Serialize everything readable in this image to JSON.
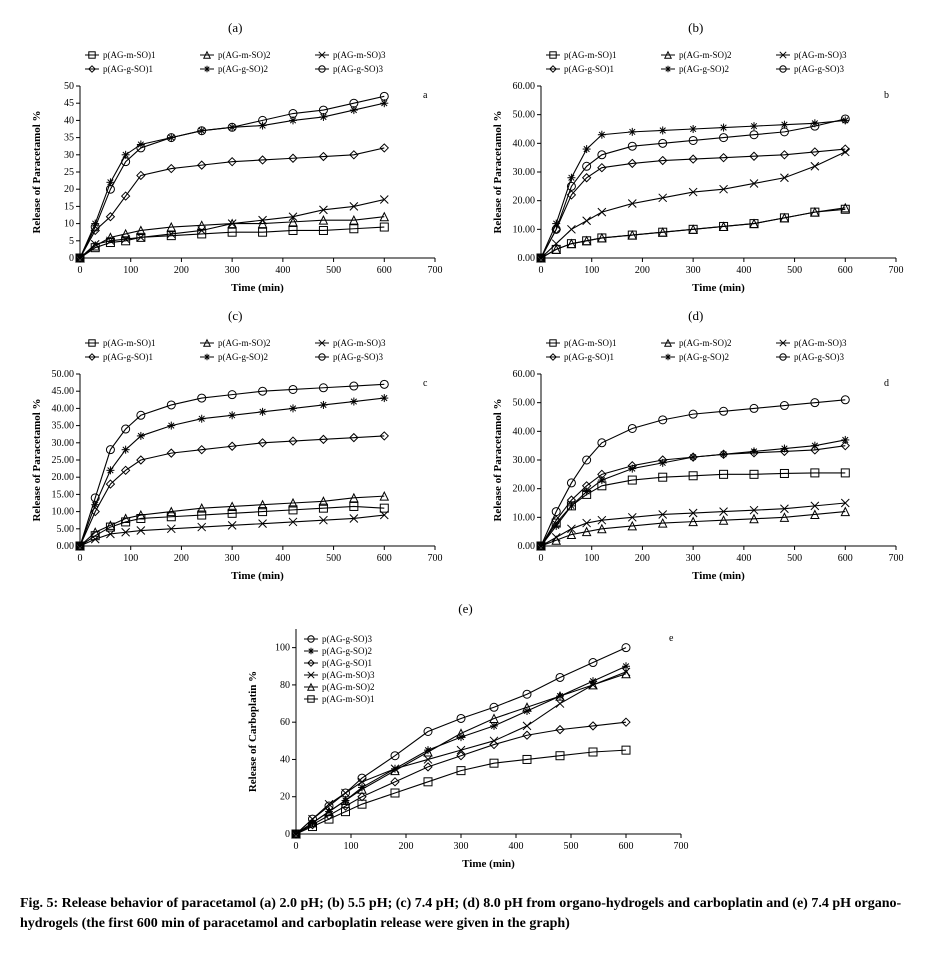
{
  "caption": "Fig. 5: Release behavior of paracetamol (a) 2.0 pH; (b) 5.5 pH; (c) 7.4 pH; (d) 8.0 pH from organo-hydrogels and carboplatin and (e) 7.4 pH organo-hydrogels (the first 600 min of paracetamol and carboplatin release were given in the graph)",
  "panel_labels": {
    "a": "(a)",
    "b": "(b)",
    "c": "(c)",
    "d": "(d)",
    "e": "(e)"
  },
  "chart_style": {
    "bg": "#ffffff",
    "axis_color": "#000000",
    "tick_color": "#000000",
    "font_axis": 10,
    "legend_font": 9,
    "marker_size": 4.0,
    "line_width": 1.1,
    "series_color": "#000000"
  },
  "series_defs": [
    {
      "key": "m1",
      "label": "p(AG-m-SO)1",
      "marker": "square-open"
    },
    {
      "key": "m2",
      "label": "p(AG-m-SO)2",
      "marker": "triangle-open"
    },
    {
      "key": "m3",
      "label": "p(AG-m-SO)3",
      "marker": "x"
    },
    {
      "key": "g1",
      "label": "p(AG-g-SO)1",
      "marker": "diamond-open"
    },
    {
      "key": "g2",
      "label": "p(AG-g-SO)2",
      "marker": "asterisk"
    },
    {
      "key": "g3",
      "label": "p(AG-g-SO)3",
      "marker": "circle-open"
    }
  ],
  "charts": {
    "a": {
      "xlabel": "Time (min)",
      "ylabel": "Release of Paracetamol %",
      "corner": "a",
      "xlim": [
        0,
        700
      ],
      "xtick_step": 100,
      "ylim": [
        0,
        50
      ],
      "ytick_step": 5,
      "ytick_fmt": "int",
      "x": [
        0,
        30,
        60,
        90,
        120,
        180,
        240,
        300,
        360,
        420,
        480,
        540,
        600
      ],
      "series": {
        "m1": [
          0,
          3,
          4.5,
          5,
          6,
          6.5,
          7,
          7.5,
          7.5,
          8,
          8,
          8.5,
          9
        ],
        "m2": [
          0,
          3.5,
          6,
          7,
          8,
          9,
          9.5,
          10,
          10,
          10.5,
          11,
          11,
          12
        ],
        "m3": [
          0,
          4,
          5,
          5.5,
          6,
          7,
          8,
          10,
          11,
          12,
          14,
          15,
          17
        ],
        "g1": [
          0,
          8,
          12,
          18,
          24,
          26,
          27,
          28,
          28.5,
          29,
          29.5,
          30,
          32
        ],
        "g2": [
          0,
          10,
          22,
          30,
          33,
          35,
          37,
          38,
          38.5,
          40,
          41,
          43,
          45
        ],
        "g3": [
          0,
          9,
          20,
          28,
          32,
          35,
          37,
          38,
          40,
          42,
          43,
          45,
          47
        ]
      }
    },
    "b": {
      "xlabel": "Time (min)",
      "ylabel": "Release of Paracetamol %",
      "corner": "b",
      "xlim": [
        0,
        700
      ],
      "xtick_step": 100,
      "ylim": [
        0,
        60
      ],
      "ytick_step": 10,
      "ytick_fmt": "2dec",
      "x": [
        0,
        30,
        60,
        90,
        120,
        180,
        240,
        300,
        360,
        420,
        480,
        540,
        600
      ],
      "series": {
        "m1": [
          0,
          3,
          5,
          6,
          7,
          8,
          9,
          10,
          11,
          12,
          14,
          16,
          17
        ],
        "m2": [
          0,
          3,
          5,
          6,
          7,
          8,
          9,
          10,
          11,
          12,
          14,
          16,
          17.5
        ],
        "m3": [
          0,
          5,
          10,
          13,
          16,
          19,
          21,
          23,
          24,
          26,
          28,
          32,
          37
        ],
        "g1": [
          0,
          10,
          22,
          28,
          31.5,
          33,
          34,
          34.5,
          35,
          35.5,
          36,
          37,
          38
        ],
        "g2": [
          0,
          12,
          28,
          38,
          43,
          44,
          44.5,
          45,
          45.5,
          46,
          46.5,
          47,
          48
        ],
        "g3": [
          0,
          10,
          25,
          32,
          36,
          39,
          40,
          41,
          42,
          43,
          44,
          46,
          48.5
        ]
      }
    },
    "c": {
      "xlabel": "Time (min)",
      "ylabel": "Release of Paracetamol %",
      "corner": "c",
      "xlim": [
        0,
        700
      ],
      "xtick_step": 100,
      "ylim": [
        0,
        50
      ],
      "ytick_step": 5,
      "ytick_fmt": "2dec",
      "x": [
        0,
        30,
        60,
        90,
        120,
        180,
        240,
        300,
        360,
        420,
        480,
        540,
        600
      ],
      "series": {
        "m1": [
          0,
          3,
          5.5,
          7,
          8,
          8.5,
          9,
          9.5,
          10,
          10.5,
          11,
          11.5,
          11
        ],
        "m2": [
          0,
          4,
          6,
          8,
          9,
          10,
          11,
          11.5,
          12,
          12.5,
          13,
          14,
          14.5
        ],
        "m3": [
          0,
          2,
          3.5,
          4,
          4.5,
          5,
          5.5,
          6,
          6.5,
          7,
          7.5,
          8,
          9
        ],
        "g1": [
          0,
          10,
          18,
          22,
          25,
          27,
          28,
          29,
          30,
          30.5,
          31,
          31.5,
          32
        ],
        "g2": [
          0,
          12,
          22,
          28,
          32,
          35,
          37,
          38,
          39,
          40,
          41,
          42,
          43
        ],
        "g3": [
          0,
          14,
          28,
          34,
          38,
          41,
          43,
          44,
          45,
          45.5,
          46,
          46.5,
          47
        ]
      }
    },
    "d": {
      "xlabel": "Time (min)",
      "ylabel": "Release of Paracetamol %",
      "corner": "d",
      "xlim": [
        0,
        700
      ],
      "xtick_step": 100,
      "ylim": [
        0,
        60
      ],
      "ytick_step": 10,
      "ytick_fmt": "2dec",
      "x": [
        0,
        30,
        60,
        90,
        120,
        180,
        240,
        300,
        360,
        420,
        480,
        540,
        600
      ],
      "series": {
        "m1": [
          0,
          8,
          14,
          18,
          21,
          23,
          24,
          24.5,
          25,
          25,
          25.3,
          25.5,
          25.5
        ],
        "m2": [
          0,
          2,
          4,
          5,
          6,
          7,
          8,
          8.5,
          9,
          9.5,
          10,
          11,
          12
        ],
        "m3": [
          0,
          3,
          6,
          8,
          9,
          10,
          11,
          11.5,
          12,
          12.5,
          13,
          14,
          15
        ],
        "g1": [
          0,
          9,
          16,
          21,
          25,
          28,
          30,
          31,
          32,
          32.5,
          33,
          33.5,
          35
        ],
        "g2": [
          0,
          7,
          14,
          19,
          23,
          27,
          29,
          31,
          32,
          33,
          34,
          35,
          37
        ],
        "g3": [
          0,
          12,
          22,
          30,
          36,
          41,
          44,
          46,
          47,
          48,
          49,
          50,
          51
        ]
      }
    },
    "e": {
      "xlabel": "Time (min)",
      "ylabel": "Release of Carboplatin %",
      "corner": "e",
      "xlim": [
        0,
        700
      ],
      "xtick_step": 100,
      "ylim": [
        0,
        110
      ],
      "yticks": [
        0,
        20,
        40,
        60,
        80,
        100
      ],
      "ytick_fmt": "int",
      "x": [
        0,
        30,
        60,
        90,
        120,
        180,
        240,
        300,
        360,
        420,
        480,
        540,
        600
      ],
      "legend_order": [
        "g3",
        "g2",
        "g1",
        "m3",
        "m2",
        "m1"
      ],
      "series": {
        "g3": [
          0,
          8,
          15,
          22,
          30,
          42,
          55,
          62,
          68,
          75,
          84,
          92,
          100
        ],
        "g2": [
          0,
          6,
          12,
          18,
          25,
          35,
          45,
          52,
          58,
          66,
          74,
          82,
          90
        ],
        "g1": [
          0,
          5,
          10,
          15,
          20,
          28,
          36,
          42,
          48,
          53,
          56,
          58,
          60
        ],
        "m3": [
          0,
          8,
          16,
          22,
          28,
          35,
          40,
          45,
          50,
          58,
          70,
          80,
          87
        ],
        "m2": [
          0,
          6,
          12,
          18,
          24,
          34,
          44,
          54,
          62,
          68,
          74,
          80,
          86
        ],
        "m1": [
          0,
          4,
          8,
          12,
          16,
          22,
          28,
          34,
          38,
          40,
          42,
          44,
          45
        ]
      }
    }
  }
}
